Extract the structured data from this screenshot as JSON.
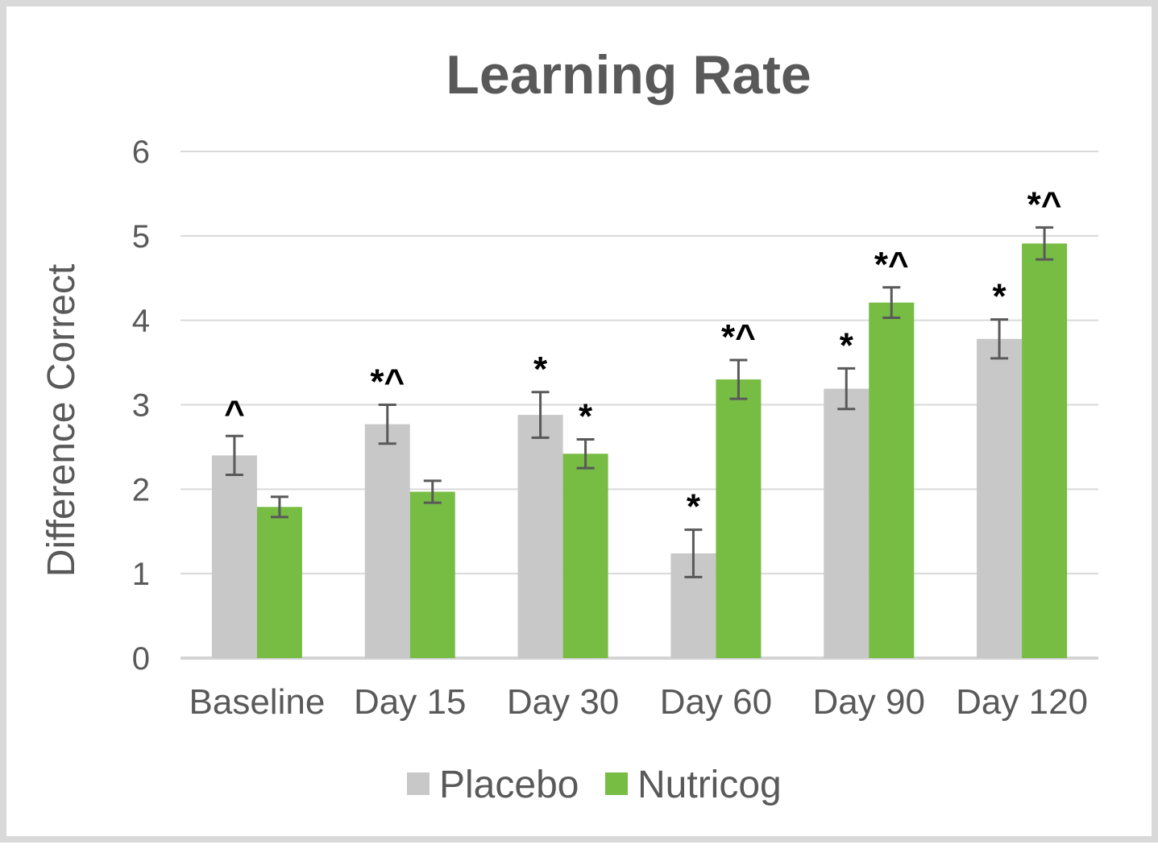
{
  "chart_data": {
    "type": "bar",
    "title": "Learning Rate",
    "xlabel": "",
    "ylabel": "Difference Correct",
    "ylim": [
      0,
      6
    ],
    "yticks": [
      0,
      1,
      2,
      3,
      4,
      5,
      6
    ],
    "grid": true,
    "legend": "bottom",
    "categories": [
      "Baseline",
      "Day 15",
      "Day 30",
      "Day 60",
      "Day 90",
      "Day 120"
    ],
    "series": [
      {
        "name": "Placebo",
        "color": "#c8c8c8",
        "values": [
          2.4,
          2.77,
          2.88,
          1.24,
          3.19,
          3.78
        ],
        "error": [
          0.23,
          0.23,
          0.27,
          0.28,
          0.24,
          0.23
        ],
        "annotations": [
          "^",
          "*^",
          "*",
          "*",
          "*",
          "*"
        ]
      },
      {
        "name": "Nutricog",
        "color": "#77bc43",
        "values": [
          1.79,
          1.97,
          2.42,
          3.3,
          4.21,
          4.91
        ],
        "error": [
          0.12,
          0.13,
          0.17,
          0.23,
          0.18,
          0.19
        ],
        "annotations": [
          "",
          "",
          "*",
          "*^",
          "*^",
          "*^"
        ]
      }
    ]
  }
}
